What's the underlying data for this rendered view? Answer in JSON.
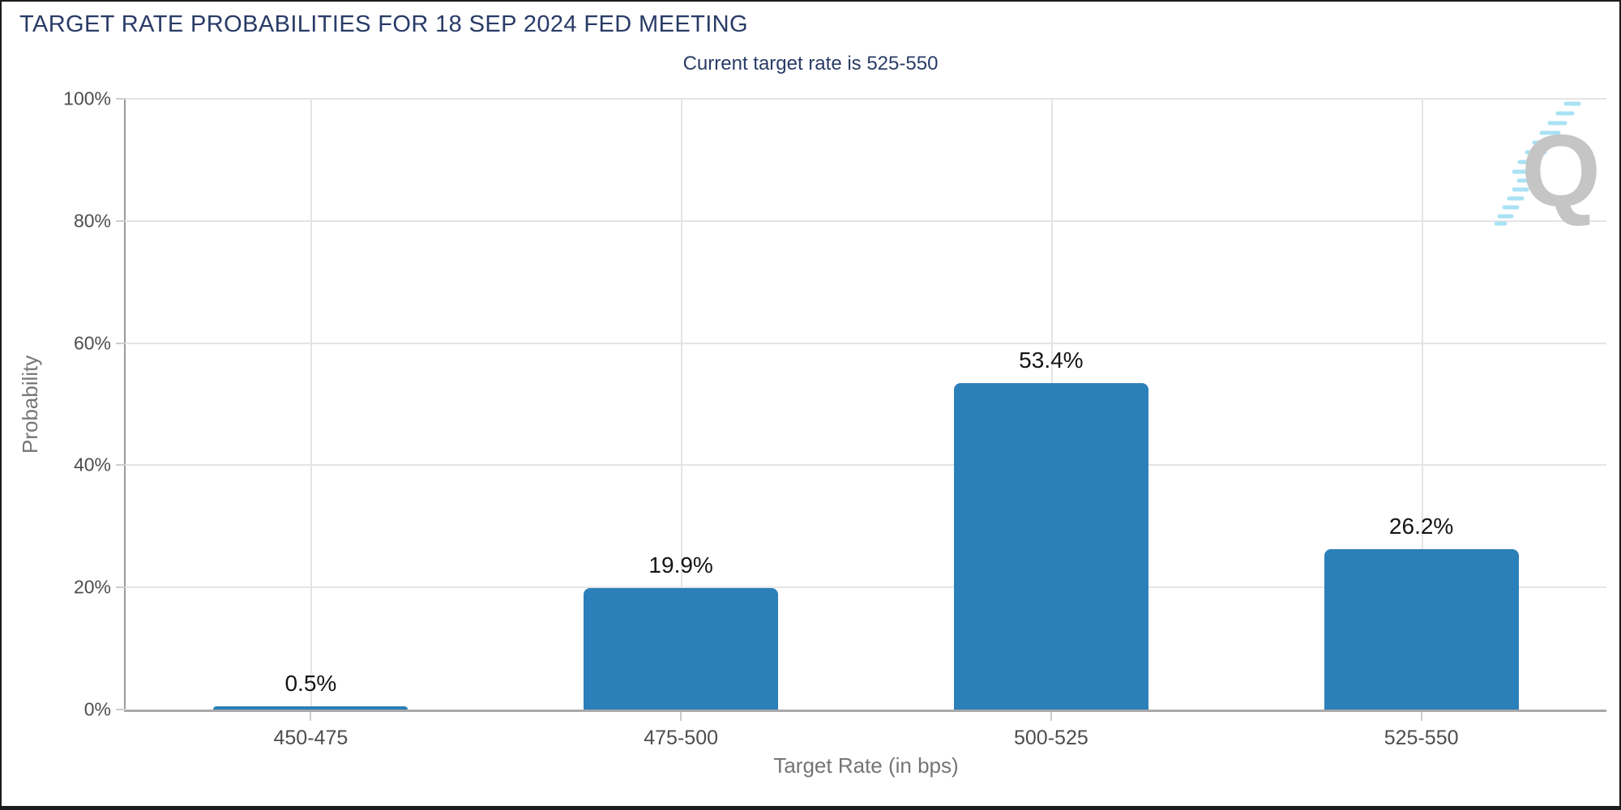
{
  "page": {
    "title": "TARGET RATE PROBABILITIES FOR 18 SEP 2024 FED MEETING",
    "subtitle": "Current target rate is 525-550"
  },
  "chart_data": {
    "type": "bar",
    "title": "TARGET RATE PROBABILITIES FOR 18 SEP 2024 FED MEETING",
    "subtitle": "Current target rate is 525-550",
    "categories": [
      "450-475",
      "475-500",
      "500-525",
      "525-550"
    ],
    "values": [
      0.5,
      19.9,
      53.4,
      26.2
    ],
    "value_labels": [
      "0.5%",
      "19.9%",
      "53.4%",
      "26.2%"
    ],
    "xlabel": "Target Rate (in bps)",
    "ylabel": "Probability",
    "y_ticks": [
      "0%",
      "20%",
      "40%",
      "60%",
      "80%",
      "100%"
    ],
    "y_tick_values": [
      0,
      20,
      40,
      60,
      80,
      100
    ],
    "ylim": [
      0,
      100
    ],
    "grid": true,
    "legend": "none",
    "bar_color": "#2c80b9",
    "title_color": "#293b67",
    "axis_label_color": "#757575",
    "tick_label_color": "#4d4d4d",
    "gridline_color": "#e4e4e4",
    "watermark_letter": "Q",
    "watermark_letter_color": "#c5c5c5",
    "watermark_dash_color": "#a9e2f4"
  }
}
